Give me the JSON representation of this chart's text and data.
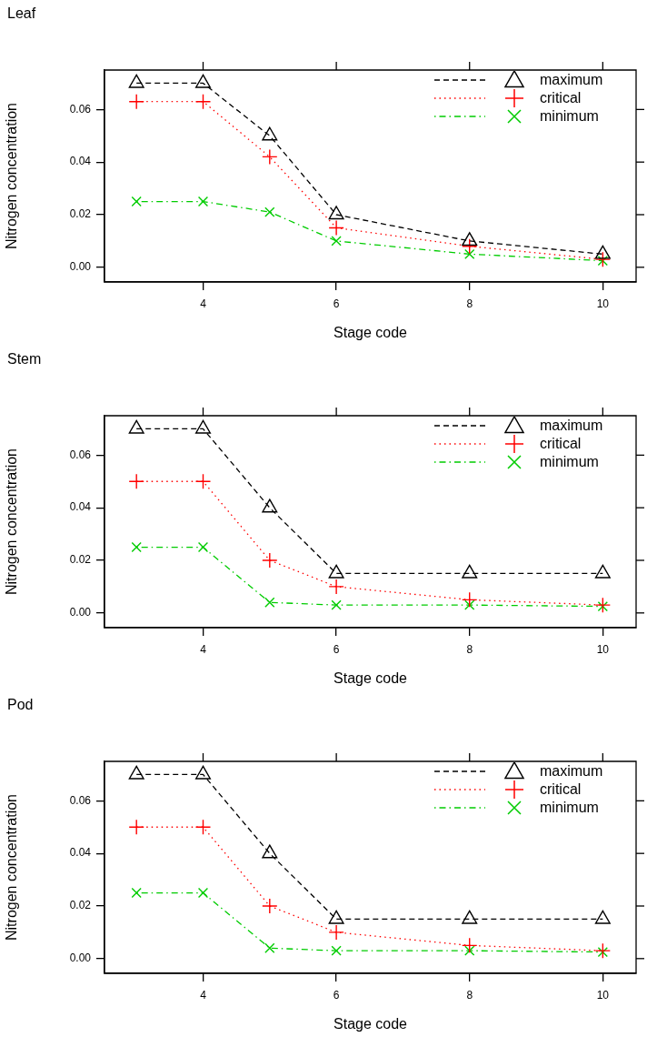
{
  "chart_data": [
    {
      "type": "line",
      "title": "Leaf",
      "xlabel": "Stage code",
      "ylabel": "Nitrogen concentration",
      "x": [
        3,
        4,
        5,
        6,
        8,
        10
      ],
      "xlim": [
        2.52,
        10.5
      ],
      "ylim": [
        -0.0056,
        0.075
      ],
      "xticks": [
        4,
        6,
        8,
        10
      ],
      "yticks": [
        {
          "value": 0,
          "label": "0.00"
        },
        {
          "value": 0.02,
          "label": "0.02"
        },
        {
          "value": 0.04,
          "label": "0.04"
        },
        {
          "value": 0.06,
          "label": "0.06"
        }
      ],
      "legend": "top right",
      "grid": false,
      "series": [
        {
          "name": "maximum",
          "color": "#000000",
          "marker": "triangle",
          "line_style": "dashed",
          "values": [
            0.07,
            0.07,
            0.05,
            0.02,
            0.01,
            0.005
          ]
        },
        {
          "name": "critical",
          "color": "#ff0000",
          "marker": "plus",
          "line_style": "dotted",
          "values": [
            0.063,
            0.063,
            0.042,
            0.015,
            0.008,
            0.003
          ]
        },
        {
          "name": "minimum",
          "color": "#00cc00",
          "marker": "cross",
          "line_style": "dashdot",
          "values": [
            0.025,
            0.025,
            0.021,
            0.01,
            0.005,
            0.0025
          ]
        }
      ]
    },
    {
      "type": "line",
      "title": "Stem",
      "xlabel": "Stage code",
      "ylabel": "Nitrogen concentration",
      "x": [
        3,
        4,
        5,
        6,
        8,
        10
      ],
      "xlim": [
        2.52,
        10.5
      ],
      "ylim": [
        -0.0056,
        0.075
      ],
      "xticks": [
        4,
        6,
        8,
        10
      ],
      "yticks": [
        {
          "value": 0,
          "label": "0.00"
        },
        {
          "value": 0.02,
          "label": "0.02"
        },
        {
          "value": 0.04,
          "label": "0.04"
        },
        {
          "value": 0.06,
          "label": "0.06"
        }
      ],
      "legend": "top right",
      "grid": false,
      "series": [
        {
          "name": "maximum",
          "color": "#000000",
          "marker": "triangle",
          "line_style": "dashed",
          "values": [
            0.07,
            0.07,
            0.04,
            0.015,
            0.015,
            0.015
          ]
        },
        {
          "name": "critical",
          "color": "#ff0000",
          "marker": "plus",
          "line_style": "dotted",
          "values": [
            0.05,
            0.05,
            0.02,
            0.01,
            0.005,
            0.003
          ]
        },
        {
          "name": "minimum",
          "color": "#00cc00",
          "marker": "cross",
          "line_style": "dashdot",
          "values": [
            0.025,
            0.025,
            0.004,
            0.003,
            0.003,
            0.0025
          ]
        }
      ]
    },
    {
      "type": "line",
      "title": "Pod",
      "xlabel": "Stage code",
      "ylabel": "Nitrogen concentration",
      "x": [
        3,
        4,
        5,
        6,
        8,
        10
      ],
      "xlim": [
        2.52,
        10.5
      ],
      "ylim": [
        -0.0056,
        0.075
      ],
      "xticks": [
        4,
        6,
        8,
        10
      ],
      "yticks": [
        {
          "value": 0,
          "label": "0.00"
        },
        {
          "value": 0.02,
          "label": "0.02"
        },
        {
          "value": 0.04,
          "label": "0.04"
        },
        {
          "value": 0.06,
          "label": "0.06"
        }
      ],
      "legend": "top right",
      "grid": false,
      "series": [
        {
          "name": "maximum",
          "color": "#000000",
          "marker": "triangle",
          "line_style": "dashed",
          "values": [
            0.07,
            0.07,
            0.04,
            0.015,
            0.015,
            0.015
          ]
        },
        {
          "name": "critical",
          "color": "#ff0000",
          "marker": "plus",
          "line_style": "dotted",
          "values": [
            0.05,
            0.05,
            0.02,
            0.01,
            0.005,
            0.003
          ]
        },
        {
          "name": "minimum",
          "color": "#00cc00",
          "marker": "cross",
          "line_style": "dashdot",
          "values": [
            0.025,
            0.025,
            0.004,
            0.003,
            0.003,
            0.0025
          ]
        }
      ]
    }
  ]
}
